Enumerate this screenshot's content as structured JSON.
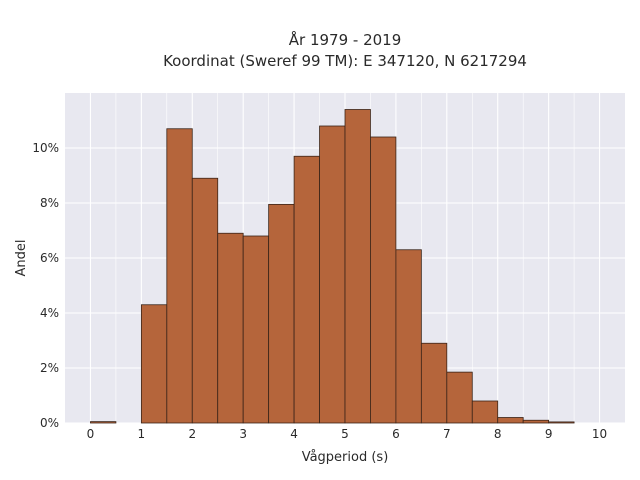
{
  "chart_data": {
    "type": "bar",
    "title": "År 1979 - 2019",
    "subtitle": "Koordinat (Sweref 99 TM): E 347120, N 6217294",
    "xlabel": "Vågperiod (s)",
    "ylabel": "Andel",
    "xlim": [
      -0.5,
      10.5
    ],
    "ylim": [
      0,
      12
    ],
    "grid": true,
    "x_ticks": [
      "0",
      "1",
      "2",
      "3",
      "4",
      "5",
      "6",
      "7",
      "8",
      "9",
      "10"
    ],
    "x_tick_values": [
      0,
      1,
      2,
      3,
      4,
      5,
      6,
      7,
      8,
      9,
      10
    ],
    "y_ticks": [
      "0%",
      "2%",
      "4%",
      "6%",
      "8%",
      "10%"
    ],
    "y_tick_values": [
      0,
      2,
      4,
      6,
      8,
      10
    ],
    "bin_edges": [
      0,
      0.5,
      1,
      1.5,
      2,
      2.5,
      3,
      3.5,
      4,
      4.5,
      5,
      5.5,
      6,
      6.5,
      7,
      7.5,
      8,
      8.5,
      9,
      9.5
    ],
    "values": [
      0.05,
      0,
      4.3,
      10.7,
      8.9,
      6.9,
      6.8,
      7.95,
      9.7,
      10.8,
      11.4,
      10.4,
      6.3,
      2.9,
      1.85,
      0.8,
      0.2,
      0.1,
      0.04
    ],
    "colors": {
      "bar_fill": "#b5653b",
      "bar_stroke": "#3a2418",
      "plot_bg": "#e8e8f0",
      "grid": "#ffffff"
    }
  }
}
